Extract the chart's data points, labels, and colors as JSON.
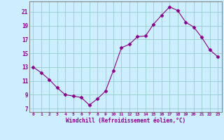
{
  "x": [
    0,
    1,
    2,
    3,
    4,
    5,
    6,
    7,
    8,
    9,
    10,
    11,
    12,
    13,
    14,
    15,
    16,
    17,
    18,
    19,
    20,
    21,
    22,
    23
  ],
  "y": [
    13.0,
    12.2,
    11.2,
    10.0,
    9.0,
    8.8,
    8.6,
    7.5,
    8.4,
    9.5,
    12.5,
    15.8,
    16.3,
    17.4,
    17.5,
    19.2,
    20.5,
    21.7,
    21.2,
    19.5,
    18.8,
    17.3,
    15.5,
    14.5
  ],
  "line_color": "#880088",
  "marker": "D",
  "marker_size": 2.5,
  "bg_color": "#cceeff",
  "grid_color": "#99cccc",
  "xlabel": "Windchill (Refroidissement éolien,°C)",
  "xlabel_color": "#880088",
  "ylabel_ticks": [
    7,
    9,
    11,
    13,
    15,
    17,
    19,
    21
  ],
  "xtick_labels": [
    "0",
    "1",
    "2",
    "3",
    "4",
    "5",
    "6",
    "7",
    "8",
    "9",
    "10",
    "11",
    "12",
    "13",
    "14",
    "15",
    "16",
    "17",
    "18",
    "19",
    "20",
    "21",
    "22",
    "23"
  ],
  "ylim": [
    6.5,
    22.5
  ],
  "xlim": [
    -0.5,
    23.5
  ],
  "spine_color": "#888888"
}
